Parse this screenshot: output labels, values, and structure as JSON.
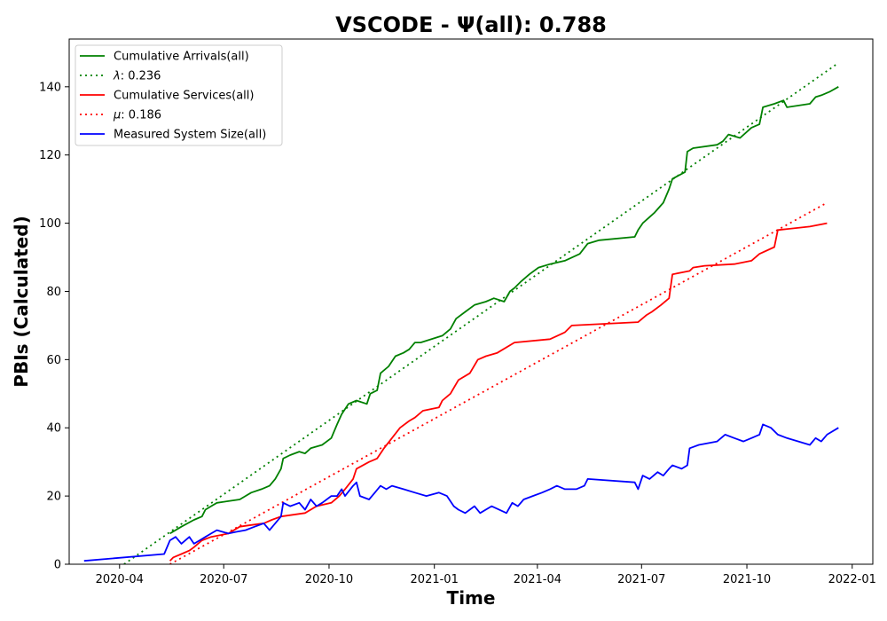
{
  "chart_data": {
    "type": "line",
    "title": "VSCODE -  Ψ(all): 0.788",
    "xlabel": "Time",
    "ylabel": "PBIs (Calculated)",
    "x_axis_type": "date",
    "xlim": [
      "2020-02-17",
      "2022-01-19"
    ],
    "ylim": [
      0,
      154
    ],
    "grid": false,
    "legend_placement": "top-left",
    "x_ticks": [
      {
        "value": "2020-04-01",
        "label": "2020-04"
      },
      {
        "value": "2020-07-01",
        "label": "2020-07"
      },
      {
        "value": "2020-10-01",
        "label": "2020-10"
      },
      {
        "value": "2021-01-01",
        "label": "2021-01"
      },
      {
        "value": "2021-04-01",
        "label": "2021-04"
      },
      {
        "value": "2021-07-01",
        "label": "2021-07"
      },
      {
        "value": "2021-10-01",
        "label": "2021-10"
      },
      {
        "value": "2022-01-01",
        "label": "2022-01"
      }
    ],
    "y_ticks": [
      0,
      20,
      40,
      60,
      80,
      100,
      120,
      140
    ],
    "series": [
      {
        "name": "Cumulative Arrivals(all)",
        "color": "#008000",
        "style": "solid",
        "points": [
          [
            "2020-05-15",
            9
          ],
          [
            "2020-05-25",
            11
          ],
          [
            "2020-06-05",
            13
          ],
          [
            "2020-06-12",
            14
          ],
          [
            "2020-06-15",
            16
          ],
          [
            "2020-06-20",
            17
          ],
          [
            "2020-06-25",
            18
          ],
          [
            "2020-07-05",
            18.5
          ],
          [
            "2020-07-15",
            19
          ],
          [
            "2020-07-20",
            20
          ],
          [
            "2020-07-25",
            21
          ],
          [
            "2020-08-03",
            22
          ],
          [
            "2020-08-10",
            23
          ],
          [
            "2020-08-15",
            25
          ],
          [
            "2020-08-20",
            28
          ],
          [
            "2020-08-22",
            31
          ],
          [
            "2020-08-28",
            32
          ],
          [
            "2020-09-05",
            33
          ],
          [
            "2020-09-10",
            32.5
          ],
          [
            "2020-09-15",
            34
          ],
          [
            "2020-09-25",
            35
          ],
          [
            "2020-10-03",
            37
          ],
          [
            "2020-10-08",
            41
          ],
          [
            "2020-10-12",
            44
          ],
          [
            "2020-10-18",
            47
          ],
          [
            "2020-10-25",
            48
          ],
          [
            "2020-11-03",
            47
          ],
          [
            "2020-11-06",
            50
          ],
          [
            "2020-11-12",
            51
          ],
          [
            "2020-11-15",
            56
          ],
          [
            "2020-11-22",
            58
          ],
          [
            "2020-11-28",
            61
          ],
          [
            "2020-12-05",
            62
          ],
          [
            "2020-12-10",
            63
          ],
          [
            "2020-12-15",
            65
          ],
          [
            "2020-12-20",
            65
          ],
          [
            "2021-01-08",
            67
          ],
          [
            "2021-01-15",
            69
          ],
          [
            "2021-01-20",
            72
          ],
          [
            "2021-01-28",
            74
          ],
          [
            "2021-02-05",
            76
          ],
          [
            "2021-02-15",
            77
          ],
          [
            "2021-02-22",
            78
          ],
          [
            "2021-03-03",
            77
          ],
          [
            "2021-03-08",
            80
          ],
          [
            "2021-03-12",
            81
          ],
          [
            "2021-03-18",
            83
          ],
          [
            "2021-03-25",
            85
          ],
          [
            "2021-04-02",
            87
          ],
          [
            "2021-04-12",
            88
          ],
          [
            "2021-04-25",
            89
          ],
          [
            "2021-05-08",
            91
          ],
          [
            "2021-05-15",
            94
          ],
          [
            "2021-05-25",
            95
          ],
          [
            "2021-06-25",
            96
          ],
          [
            "2021-06-28",
            98
          ],
          [
            "2021-07-02",
            100
          ],
          [
            "2021-07-12",
            103
          ],
          [
            "2021-07-20",
            106
          ],
          [
            "2021-07-25",
            110
          ],
          [
            "2021-07-28",
            113
          ],
          [
            "2021-08-08",
            115
          ],
          [
            "2021-08-10",
            121
          ],
          [
            "2021-08-15",
            122
          ],
          [
            "2021-09-05",
            123
          ],
          [
            "2021-09-10",
            124
          ],
          [
            "2021-09-15",
            126
          ],
          [
            "2021-09-25",
            125
          ],
          [
            "2021-10-05",
            128
          ],
          [
            "2021-10-12",
            129
          ],
          [
            "2021-10-15",
            134
          ],
          [
            "2021-10-25",
            135
          ],
          [
            "2021-11-02",
            136
          ],
          [
            "2021-11-05",
            134
          ],
          [
            "2021-11-25",
            135
          ],
          [
            "2021-11-30",
            137
          ],
          [
            "2021-12-05",
            137.5
          ],
          [
            "2021-12-12",
            138.5
          ],
          [
            "2021-12-20",
            140
          ]
        ]
      },
      {
        "name": "\\lambda: 0.236",
        "legend_label_symbol": "λ",
        "legend_label_text": ": 0.236",
        "color": "#008000",
        "style": "dotted",
        "points": [
          [
            "2020-04-05",
            0
          ],
          [
            "2021-12-20",
            147
          ]
        ]
      },
      {
        "name": "Cumulative Services(all)",
        "color": "#ff0000",
        "style": "solid",
        "points": [
          [
            "2020-05-15",
            1
          ],
          [
            "2020-05-18",
            2
          ],
          [
            "2020-05-25",
            3
          ],
          [
            "2020-06-01",
            4
          ],
          [
            "2020-06-05",
            5
          ],
          [
            "2020-06-12",
            7
          ],
          [
            "2020-06-20",
            8
          ],
          [
            "2020-07-05",
            9
          ],
          [
            "2020-07-15",
            11
          ],
          [
            "2020-07-25",
            11.5
          ],
          [
            "2020-08-05",
            12
          ],
          [
            "2020-08-12",
            13
          ],
          [
            "2020-08-20",
            14
          ],
          [
            "2020-09-10",
            15
          ],
          [
            "2020-09-20",
            17
          ],
          [
            "2020-10-03",
            18
          ],
          [
            "2020-10-10",
            20
          ],
          [
            "2020-10-15",
            22
          ],
          [
            "2020-10-22",
            25
          ],
          [
            "2020-10-25",
            28
          ],
          [
            "2020-11-05",
            30
          ],
          [
            "2020-11-12",
            31
          ],
          [
            "2020-11-18",
            34
          ],
          [
            "2020-11-25",
            37
          ],
          [
            "2020-12-02",
            40
          ],
          [
            "2020-12-10",
            42
          ],
          [
            "2020-12-15",
            43
          ],
          [
            "2020-12-22",
            45
          ],
          [
            "2021-01-05",
            46
          ],
          [
            "2021-01-08",
            48
          ],
          [
            "2021-01-15",
            50
          ],
          [
            "2021-01-22",
            54
          ],
          [
            "2021-02-01",
            56
          ],
          [
            "2021-02-08",
            60
          ],
          [
            "2021-02-15",
            61
          ],
          [
            "2021-02-25",
            62
          ],
          [
            "2021-03-12",
            65
          ],
          [
            "2021-04-12",
            66
          ],
          [
            "2021-04-25",
            68
          ],
          [
            "2021-05-01",
            70
          ],
          [
            "2021-06-28",
            71
          ],
          [
            "2021-07-05",
            73
          ],
          [
            "2021-07-10",
            74
          ],
          [
            "2021-07-18",
            76
          ],
          [
            "2021-07-25",
            78
          ],
          [
            "2021-07-28",
            85
          ],
          [
            "2021-08-12",
            86
          ],
          [
            "2021-08-15",
            87
          ],
          [
            "2021-08-25",
            87.5
          ],
          [
            "2021-09-20",
            88
          ],
          [
            "2021-10-05",
            89
          ],
          [
            "2021-10-12",
            91
          ],
          [
            "2021-10-25",
            93
          ],
          [
            "2021-10-28",
            98
          ],
          [
            "2021-11-25",
            99
          ],
          [
            "2021-12-10",
            100
          ]
        ]
      },
      {
        "name": "\\mu: 0.186",
        "legend_label_symbol": "μ",
        "legend_label_text": ": 0.186",
        "color": "#ff0000",
        "style": "dotted",
        "points": [
          [
            "2020-05-15",
            0
          ],
          [
            "2021-12-10",
            106
          ]
        ]
      },
      {
        "name": "Measured System Size(all)",
        "color": "#0000ff",
        "style": "solid",
        "points": [
          [
            "2020-03-01",
            1
          ],
          [
            "2020-05-10",
            3
          ],
          [
            "2020-05-15",
            7
          ],
          [
            "2020-05-20",
            8
          ],
          [
            "2020-05-25",
            6
          ],
          [
            "2020-06-01",
            8
          ],
          [
            "2020-06-05",
            6
          ],
          [
            "2020-06-10",
            7
          ],
          [
            "2020-06-15",
            8
          ],
          [
            "2020-06-20",
            9
          ],
          [
            "2020-06-25",
            10
          ],
          [
            "2020-07-05",
            9
          ],
          [
            "2020-07-12",
            9.5
          ],
          [
            "2020-07-20",
            10
          ],
          [
            "2020-07-28",
            11
          ],
          [
            "2020-08-05",
            12
          ],
          [
            "2020-08-10",
            10
          ],
          [
            "2020-08-20",
            14
          ],
          [
            "2020-08-22",
            18
          ],
          [
            "2020-08-28",
            17
          ],
          [
            "2020-09-05",
            18
          ],
          [
            "2020-09-10",
            16
          ],
          [
            "2020-09-15",
            19
          ],
          [
            "2020-09-20",
            17
          ],
          [
            "2020-09-25",
            18
          ],
          [
            "2020-10-03",
            20
          ],
          [
            "2020-10-08",
            20
          ],
          [
            "2020-10-12",
            22
          ],
          [
            "2020-10-15",
            20
          ],
          [
            "2020-10-22",
            23
          ],
          [
            "2020-10-25",
            24
          ],
          [
            "2020-10-28",
            20
          ],
          [
            "2020-11-05",
            19
          ],
          [
            "2020-11-10",
            21
          ],
          [
            "2020-11-15",
            23
          ],
          [
            "2020-11-20",
            22
          ],
          [
            "2020-11-25",
            23
          ],
          [
            "2020-12-05",
            22
          ],
          [
            "2020-12-15",
            21
          ],
          [
            "2020-12-25",
            20
          ],
          [
            "2021-01-05",
            21
          ],
          [
            "2021-01-12",
            20
          ],
          [
            "2021-01-18",
            17
          ],
          [
            "2021-01-22",
            16
          ],
          [
            "2021-01-28",
            15
          ],
          [
            "2021-02-05",
            17
          ],
          [
            "2021-02-10",
            15
          ],
          [
            "2021-02-20",
            17
          ],
          [
            "2021-03-05",
            15
          ],
          [
            "2021-03-10",
            18
          ],
          [
            "2021-03-15",
            17
          ],
          [
            "2021-03-20",
            19
          ],
          [
            "2021-03-28",
            20
          ],
          [
            "2021-04-05",
            21
          ],
          [
            "2021-04-12",
            22
          ],
          [
            "2021-04-18",
            23
          ],
          [
            "2021-04-25",
            22
          ],
          [
            "2021-05-05",
            22
          ],
          [
            "2021-05-12",
            23
          ],
          [
            "2021-05-15",
            25
          ],
          [
            "2021-06-25",
            24
          ],
          [
            "2021-06-28",
            22
          ],
          [
            "2021-07-02",
            26
          ],
          [
            "2021-07-08",
            25
          ],
          [
            "2021-07-15",
            27
          ],
          [
            "2021-07-20",
            26
          ],
          [
            "2021-07-25",
            28
          ],
          [
            "2021-07-28",
            29
          ],
          [
            "2021-08-05",
            28
          ],
          [
            "2021-08-10",
            29
          ],
          [
            "2021-08-12",
            34
          ],
          [
            "2021-08-20",
            35
          ],
          [
            "2021-09-05",
            36
          ],
          [
            "2021-09-12",
            38
          ],
          [
            "2021-09-20",
            37
          ],
          [
            "2021-09-28",
            36
          ],
          [
            "2021-10-05",
            37
          ],
          [
            "2021-10-12",
            38
          ],
          [
            "2021-10-15",
            41
          ],
          [
            "2021-10-22",
            40
          ],
          [
            "2021-10-28",
            38
          ],
          [
            "2021-11-05",
            37
          ],
          [
            "2021-11-15",
            36
          ],
          [
            "2021-11-25",
            35
          ],
          [
            "2021-11-30",
            37
          ],
          [
            "2021-12-05",
            36
          ],
          [
            "2021-12-10",
            38
          ],
          [
            "2021-12-20",
            40
          ]
        ]
      }
    ],
    "legend": {
      "placement": "top-left",
      "entries": [
        {
          "label": "Cumulative Arrivals(all)",
          "color": "#008000",
          "style": "solid"
        },
        {
          "label": "λ: 0.236",
          "symbol": "λ",
          "text": ": 0.236",
          "color": "#008000",
          "style": "dotted"
        },
        {
          "label": "Cumulative Services(all)",
          "color": "#ff0000",
          "style": "solid"
        },
        {
          "label": "μ: 0.186",
          "symbol": "μ",
          "text": ": 0.186",
          "color": "#ff0000",
          "style": "dotted"
        },
        {
          "label": "Measured System Size(all)",
          "color": "#0000ff",
          "style": "solid"
        }
      ]
    }
  }
}
